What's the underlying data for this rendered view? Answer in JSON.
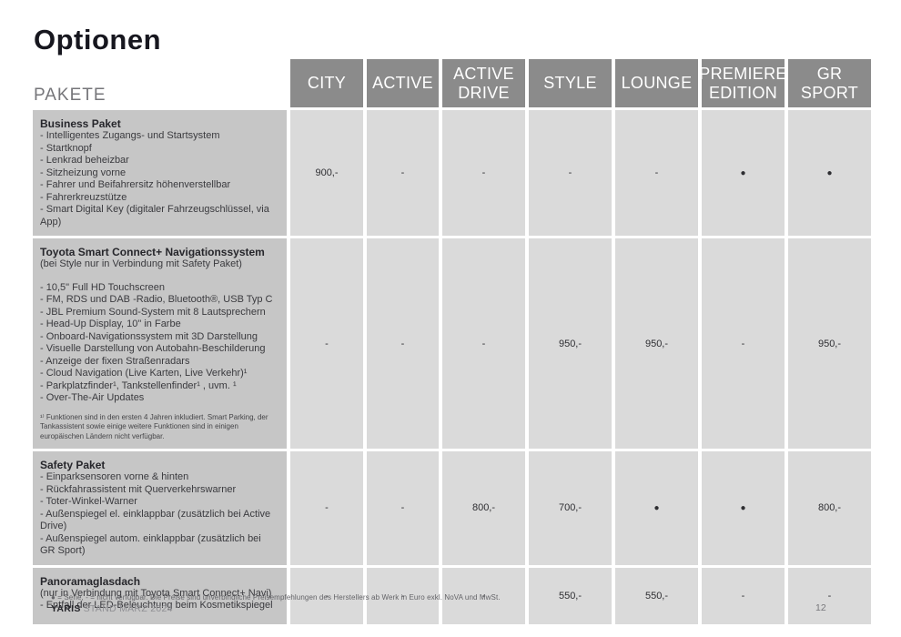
{
  "page": {
    "title": "Optionen",
    "section_label": "PAKETE",
    "footer": {
      "legend": "● = Serie, - = nicht verfügbar. Die Preise sind unverbindliche Preisempfehlungen des Herstellers ab Werk in Euro exkl. NoVA und MwSt.",
      "brand": "YARIS",
      "edition": "STAND MÄRZ 2024",
      "page_number": "12"
    }
  },
  "colors": {
    "header_bg": "#8b8b8b",
    "header_text": "#ffffff",
    "label_bg": "#c6c6c6",
    "cell_bg": "#dadada"
  },
  "table": {
    "columns": [
      "CITY",
      "ACTIVE",
      "ACTIVE\nDRIVE",
      "STYLE",
      "LOUNGE",
      "PREMIERE\nEDITION",
      "GR\nSPORT"
    ],
    "rows": [
      {
        "title": "Business Paket",
        "subtitle": "",
        "items": [
          "- Intelligentes Zugangs- und Startsystem",
          "- Startknopf",
          "- Lenkrad beheizbar",
          "- Sitzheizung vorne",
          "- Fahrer und Beifahrersitz höhenverstellbar",
          "- Fahrerkreuzstütze",
          "- Smart Digital Key (digitaler Fahrzeugschlüssel, via App)"
        ],
        "footnote": "",
        "values": [
          "900,-",
          "-",
          "-",
          "-",
          "-",
          "●",
          "●"
        ]
      },
      {
        "title": "Toyota Smart Connect+ Navigationssystem",
        "subtitle": "(bei Style nur in Verbindung mit Safety Paket)",
        "items": [
          "- 10,5\" Full HD Touchscreen",
          "- FM, RDS und DAB -Radio, Bluetooth®, USB Typ C",
          "- JBL Premium Sound-System mit 8 Lautsprechern",
          "- Head-Up Display, 10\" in Farbe",
          "- Onboard-Navigationssystem mit 3D Darstellung",
          "- Visuelle Darstellung von Autobahn-Beschilderung",
          "- Anzeige der fixen Straßenradars",
          "- Cloud Navigation (Live Karten, Live Verkehr)¹",
          "- Parkplatzfinder¹, Tankstellenfinder¹ , uvm. ¹",
          "- Over-The-Air Updates"
        ],
        "footnote": "¹⁾ Funktionen sind in den ersten 4 Jahren inkludiert. Smart Parking, der Tankassistent sowie einige weitere Funktionen sind in einigen europäischen Ländern nicht verfügbar.",
        "values": [
          "-",
          "-",
          "-",
          "950,-",
          "950,-",
          "-",
          "950,-"
        ]
      },
      {
        "title": "Safety Paket",
        "subtitle": "",
        "items": [
          "- Einparksensoren vorne & hinten",
          "- Rückfahrassistent mit Querverkehrswarner",
          "- Toter-Winkel-Warner",
          "- Außenspiegel el. einklappbar (zusätzlich bei Active Drive)",
          "- Außenspiegel autom. einklappbar (zusätzlich bei GR Sport)"
        ],
        "footnote": "",
        "values": [
          "-",
          "-",
          "800,-",
          "700,-",
          "●",
          "●",
          "800,-"
        ]
      },
      {
        "title": "Panoramaglasdach",
        "subtitle": "(nur in Verbindung mit Toyota Smart Connect+ Navi)",
        "items": [
          "- Entfall der LED-Beleuchtung beim Kosmetikspiegel"
        ],
        "footnote": "",
        "values": [
          "-",
          "-",
          "-",
          "550,-",
          "550,-",
          "-",
          "-"
        ]
      }
    ]
  }
}
